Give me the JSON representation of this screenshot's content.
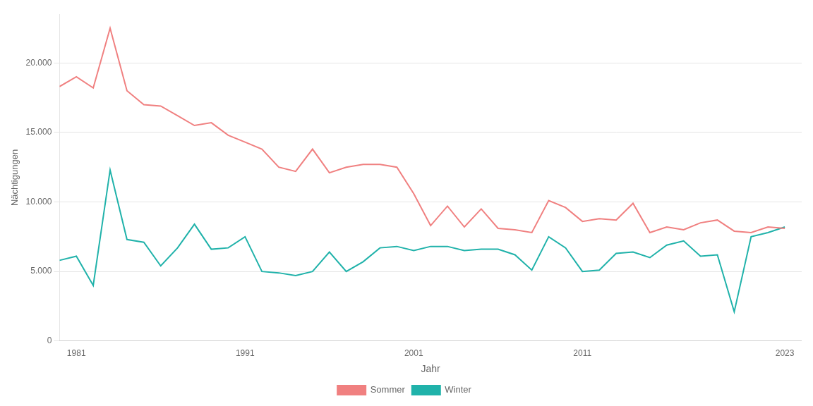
{
  "chart_data": {
    "type": "line",
    "x": [
      1980,
      1981,
      1982,
      1983,
      1984,
      1985,
      1986,
      1987,
      1988,
      1989,
      1990,
      1991,
      1992,
      1993,
      1994,
      1995,
      1996,
      1997,
      1998,
      1999,
      2000,
      2001,
      2002,
      2003,
      2004,
      2005,
      2006,
      2007,
      2008,
      2009,
      2010,
      2011,
      2012,
      2013,
      2014,
      2015,
      2016,
      2017,
      2018,
      2019,
      2020,
      2021,
      2022,
      2023
    ],
    "series": [
      {
        "name": "Sommer",
        "color": "#F08080",
        "values": [
          18300,
          19000,
          18200,
          22500,
          18000,
          17000,
          16900,
          16200,
          15500,
          15700,
          14800,
          14300,
          13800,
          12500,
          12200,
          13800,
          12100,
          12500,
          12700,
          12700,
          12500,
          10600,
          8300,
          9700,
          8200,
          9500,
          8100,
          8000,
          7800,
          10100,
          9600,
          8600,
          8800,
          8700,
          9900,
          7800,
          8200,
          8000,
          8500,
          8700,
          7900,
          7800,
          8200,
          8100
        ]
      },
      {
        "name": "Winter",
        "color": "#20B2AA",
        "values": [
          5800,
          6100,
          4000,
          12300,
          7300,
          7100,
          5400,
          6700,
          8400,
          6600,
          6700,
          7500,
          5000,
          4900,
          4700,
          5000,
          6400,
          5000,
          5700,
          6700,
          6800,
          6500,
          6800,
          6800,
          6500,
          6600,
          6600,
          6200,
          5100,
          7500,
          6700,
          5000,
          5100,
          6300,
          6400,
          6000,
          6900,
          7200,
          6100,
          6200,
          2100,
          7500,
          7800,
          8200
        ]
      }
    ],
    "x_label": "Jahr",
    "y_label": "Nächtigungen",
    "xlim": [
      1980,
      2024
    ],
    "xticks": [
      1981,
      1991,
      2001,
      2011,
      2023
    ],
    "ylim": [
      0,
      23500
    ],
    "yticks": [
      0,
      {
        "value": 5000,
        "label": "5.000"
      },
      {
        "value": 10000,
        "label": "10.000"
      },
      {
        "value": 15000,
        "label": "15.000"
      },
      {
        "value": 20000,
        "label": "20.000"
      }
    ],
    "grid": "y",
    "legend": "bottom"
  }
}
